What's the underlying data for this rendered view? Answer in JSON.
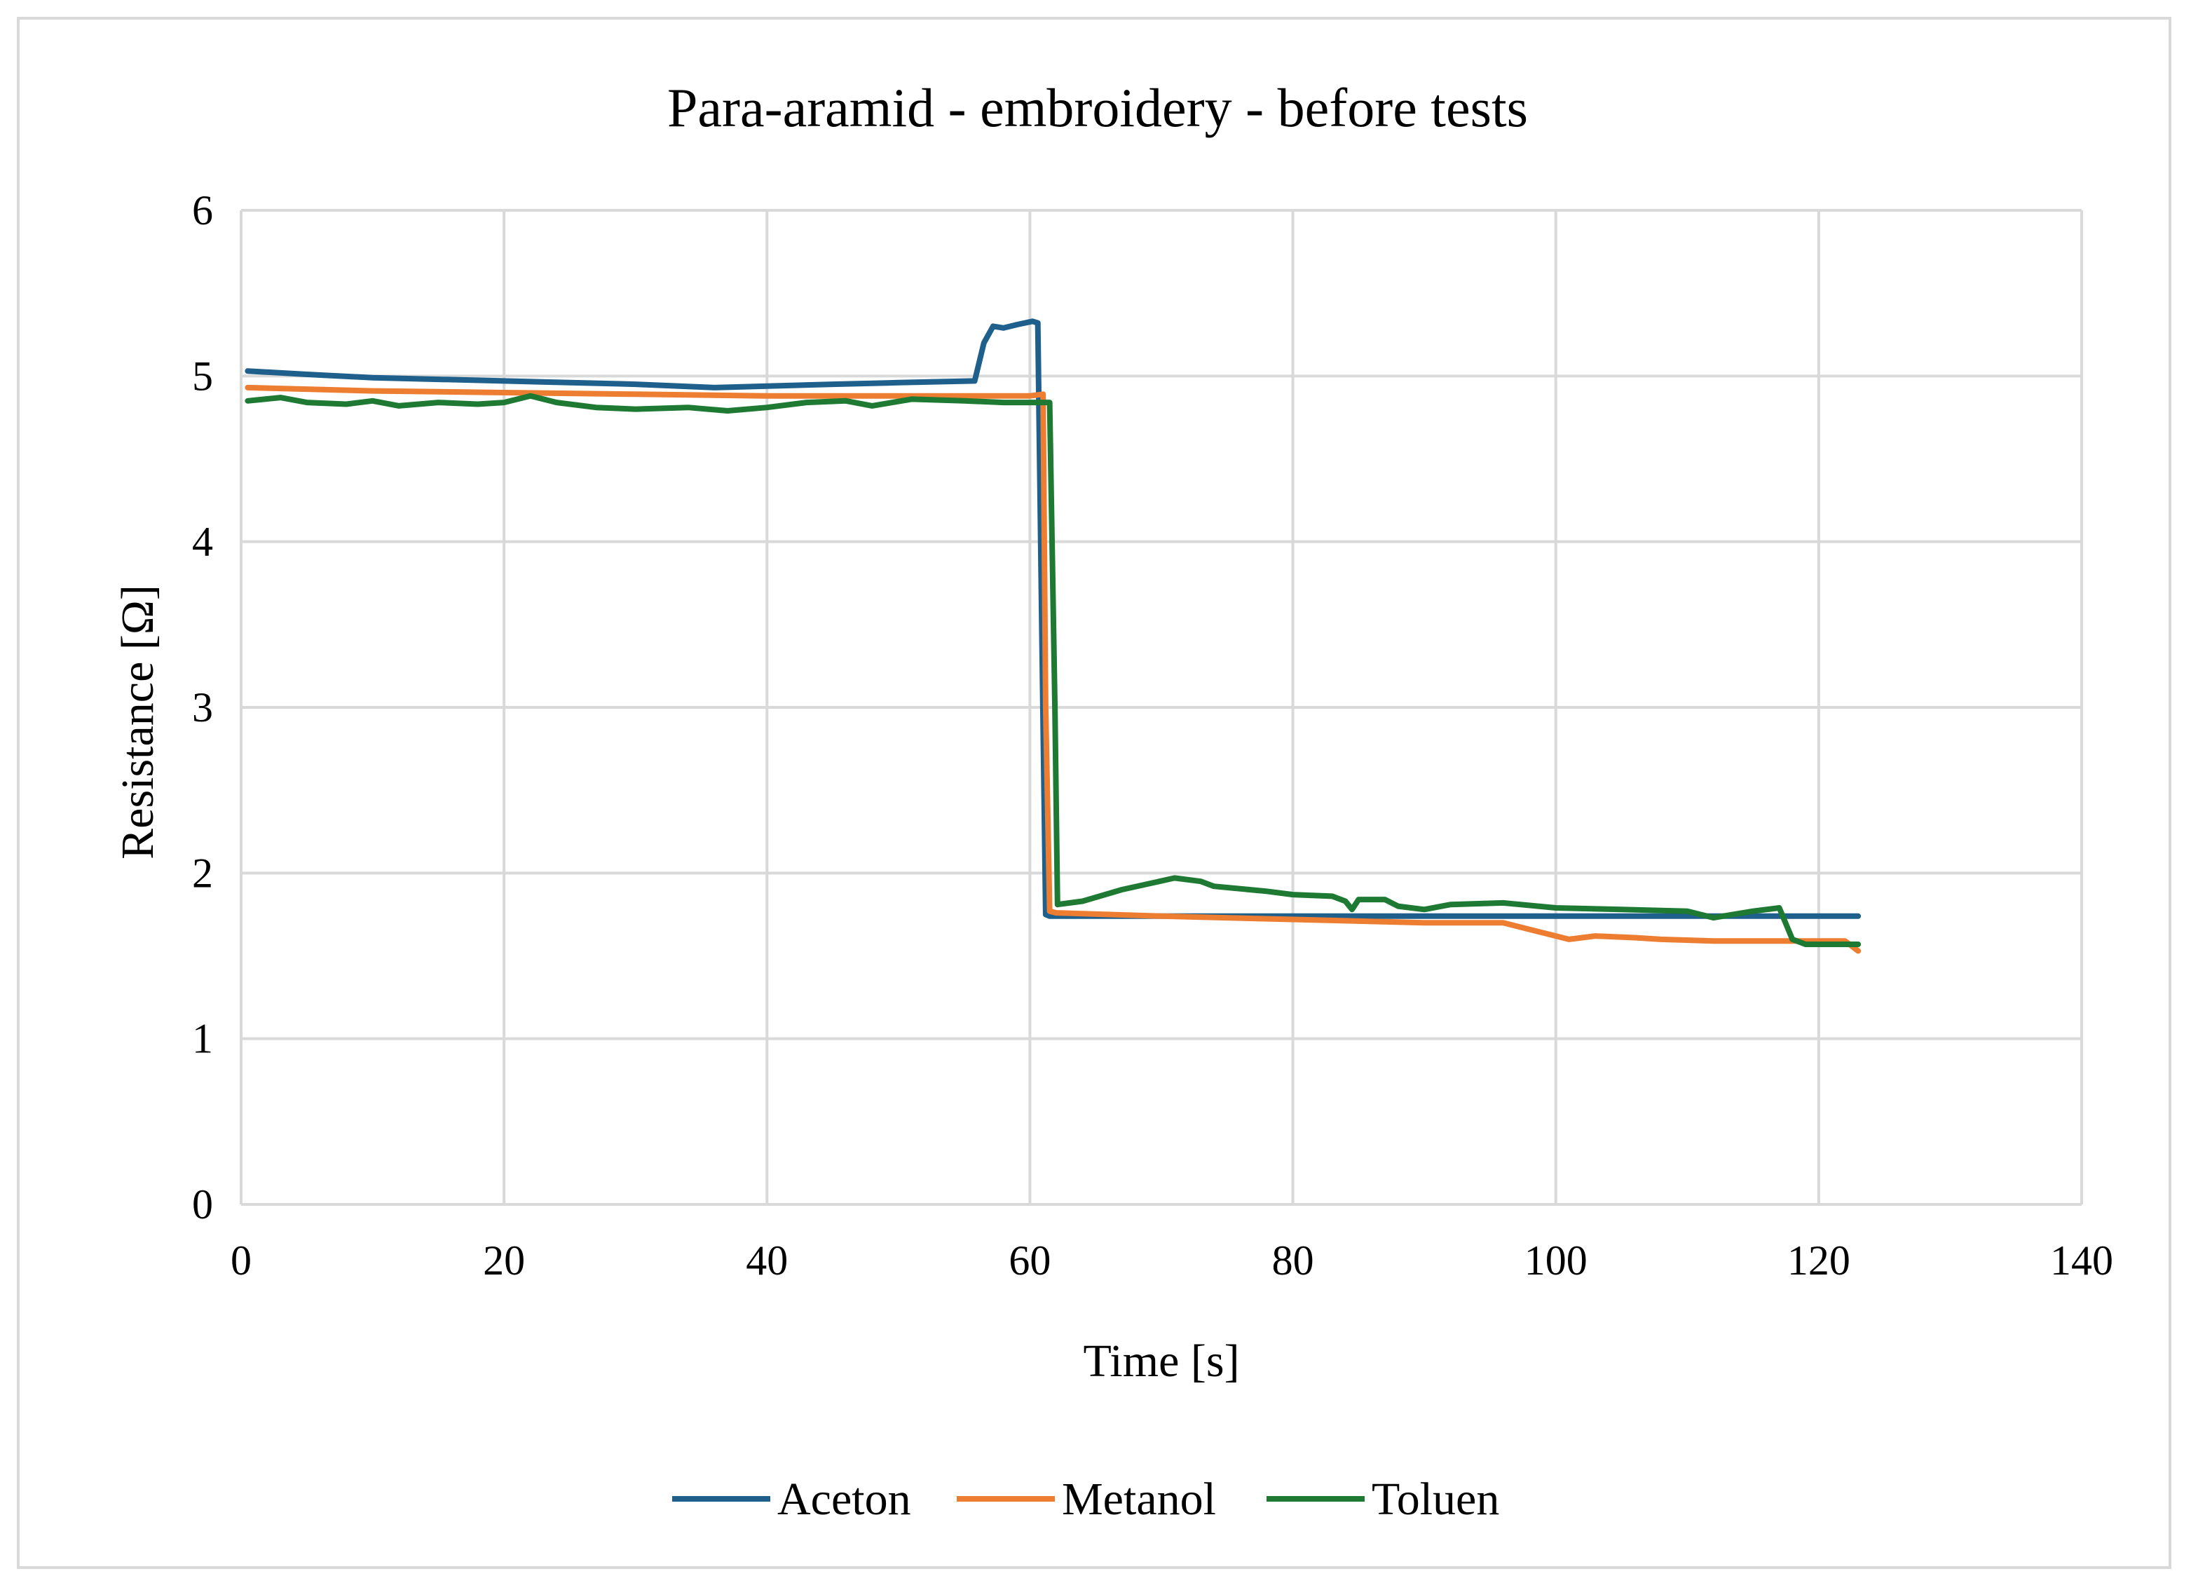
{
  "chart_data": {
    "type": "line",
    "title": "Para-aramid - embroidery - before tests",
    "xlabel": "Time [s]",
    "ylabel": "Resistance [Ω]",
    "xlim": [
      0,
      140
    ],
    "ylim": [
      0,
      6
    ],
    "x_ticks": [
      0,
      20,
      40,
      60,
      80,
      100,
      120,
      140
    ],
    "y_ticks": [
      0,
      1,
      2,
      3,
      4,
      5,
      6
    ],
    "grid": true,
    "legend_position": "bottom",
    "series": [
      {
        "name": "Aceton",
        "color": "#1f5f8b",
        "points": [
          [
            0.5,
            5.03
          ],
          [
            5,
            5.01
          ],
          [
            10,
            4.99
          ],
          [
            20,
            4.97
          ],
          [
            30,
            4.95
          ],
          [
            36,
            4.93
          ],
          [
            45,
            4.95
          ],
          [
            50,
            4.96
          ],
          [
            55.8,
            4.97
          ],
          [
            56.5,
            5.2
          ],
          [
            57.2,
            5.3
          ],
          [
            58,
            5.29
          ],
          [
            59,
            5.31
          ],
          [
            60.2,
            5.33
          ],
          [
            60.6,
            5.32
          ],
          [
            60.9,
            3.5
          ],
          [
            61.2,
            1.75
          ],
          [
            61.5,
            1.74
          ],
          [
            70,
            1.74
          ],
          [
            80,
            1.74
          ],
          [
            90,
            1.74
          ],
          [
            100,
            1.74
          ],
          [
            110,
            1.74
          ],
          [
            123,
            1.74
          ]
        ]
      },
      {
        "name": "Metanol",
        "color": "#ed7d31",
        "points": [
          [
            0.5,
            4.93
          ],
          [
            10,
            4.91
          ],
          [
            20,
            4.9
          ],
          [
            30,
            4.89
          ],
          [
            40,
            4.88
          ],
          [
            50,
            4.88
          ],
          [
            55,
            4.88
          ],
          [
            60,
            4.88
          ],
          [
            61,
            4.89
          ],
          [
            61.2,
            3.0
          ],
          [
            61.5,
            1.77
          ],
          [
            62,
            1.76
          ],
          [
            70,
            1.74
          ],
          [
            80,
            1.72
          ],
          [
            90,
            1.7
          ],
          [
            96,
            1.7
          ],
          [
            98,
            1.66
          ],
          [
            100,
            1.62
          ],
          [
            101,
            1.6
          ],
          [
            103,
            1.62
          ],
          [
            106,
            1.61
          ],
          [
            108,
            1.6
          ],
          [
            112,
            1.59
          ],
          [
            118,
            1.59
          ],
          [
            122,
            1.59
          ],
          [
            123,
            1.53
          ]
        ]
      },
      {
        "name": "Toluen",
        "color": "#1e7a32",
        "points": [
          [
            0.5,
            4.85
          ],
          [
            3,
            4.87
          ],
          [
            5,
            4.84
          ],
          [
            8,
            4.83
          ],
          [
            10,
            4.85
          ],
          [
            12,
            4.82
          ],
          [
            15,
            4.84
          ],
          [
            18,
            4.83
          ],
          [
            20,
            4.84
          ],
          [
            22,
            4.88
          ],
          [
            24,
            4.84
          ],
          [
            27,
            4.81
          ],
          [
            30,
            4.8
          ],
          [
            34,
            4.81
          ],
          [
            37,
            4.79
          ],
          [
            40,
            4.81
          ],
          [
            43,
            4.84
          ],
          [
            46,
            4.85
          ],
          [
            48,
            4.82
          ],
          [
            51,
            4.86
          ],
          [
            55,
            4.85
          ],
          [
            58,
            4.84
          ],
          [
            61.5,
            4.84
          ],
          [
            61.9,
            3.0
          ],
          [
            62.1,
            1.81
          ],
          [
            64,
            1.83
          ],
          [
            67,
            1.9
          ],
          [
            71,
            1.97
          ],
          [
            73,
            1.95
          ],
          [
            74,
            1.92
          ],
          [
            78,
            1.89
          ],
          [
            80,
            1.87
          ],
          [
            83,
            1.86
          ],
          [
            84,
            1.83
          ],
          [
            84.5,
            1.78
          ],
          [
            85,
            1.84
          ],
          [
            87,
            1.84
          ],
          [
            88,
            1.8
          ],
          [
            90,
            1.78
          ],
          [
            92,
            1.81
          ],
          [
            96,
            1.82
          ],
          [
            100,
            1.79
          ],
          [
            105,
            1.78
          ],
          [
            110,
            1.77
          ],
          [
            112,
            1.73
          ],
          [
            115,
            1.77
          ],
          [
            117,
            1.79
          ],
          [
            118,
            1.6
          ],
          [
            119,
            1.57
          ],
          [
            123,
            1.57
          ]
        ]
      }
    ]
  }
}
